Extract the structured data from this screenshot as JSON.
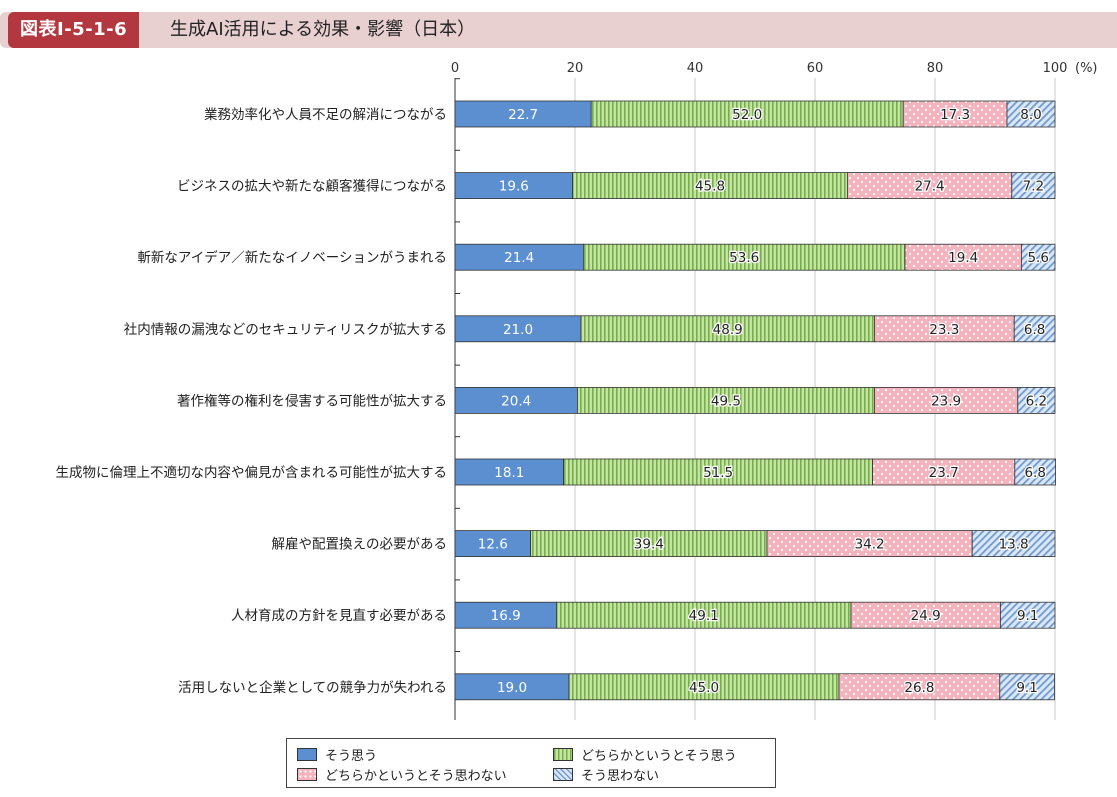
{
  "header": {
    "figure_id": "図表Ⅰ-5-1-6",
    "title": "生成AI活用による効果・影響（日本）"
  },
  "colors": {
    "agree": "#5b8fd0",
    "somewhat_agree": "#9ccf6a",
    "somewhat_disagree": "#f5b3be",
    "disagree": "#a9c4e6",
    "header_bg": "#e8cfd0",
    "header_id_bg": "#b3373f"
  },
  "chart_data": {
    "type": "bar",
    "orientation": "horizontal",
    "stacked": true,
    "x_unit": "(%)",
    "xlim": [
      0,
      100
    ],
    "x_ticks": [
      0,
      20,
      40,
      60,
      80,
      100
    ],
    "x_tick_labels": [
      "0",
      "20",
      "40",
      "60",
      "80",
      "100"
    ],
    "grid": true,
    "legend_placement": "bottom",
    "categories": [
      "業務効率化や人員不足の解消につながる",
      "ビジネスの拡大や新たな顧客獲得につながる",
      "斬新なアイデア／新たなイノベーションがうまれる",
      "社内情報の漏洩などのセキュリティリスクが拡大する",
      "著作権等の権利を侵害する可能性が拡大する",
      "生成物に倫理上不適切な内容や偏見が含まれる可能性が拡大する",
      "解雇や配置換えの必要がある",
      "人材育成の方針を見直す必要がある",
      "活用しないと企業としての競争力が失われる"
    ],
    "series": [
      {
        "name": "そう思う",
        "values": [
          22.7,
          19.6,
          21.4,
          21.0,
          20.4,
          18.1,
          12.6,
          16.9,
          19.0
        ]
      },
      {
        "name": "どちらかというとそう思う",
        "values": [
          52.0,
          45.8,
          53.6,
          48.9,
          49.5,
          51.5,
          39.4,
          49.1,
          45.0
        ]
      },
      {
        "name": "どちらかというとそう思わない",
        "values": [
          17.3,
          27.4,
          19.4,
          23.3,
          23.9,
          23.7,
          34.2,
          24.9,
          26.8
        ]
      },
      {
        "name": "そう思わない",
        "values": [
          8.0,
          7.2,
          5.6,
          6.8,
          6.2,
          6.8,
          13.8,
          9.1,
          9.1
        ]
      }
    ]
  }
}
